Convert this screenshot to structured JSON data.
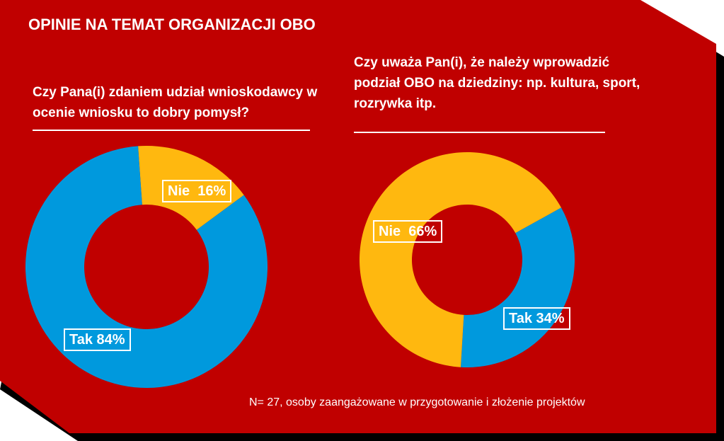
{
  "title": "OPINIE NA TEMAT ORGANIZACJI OBO",
  "colors": {
    "background": "#C00000",
    "tak": "#0099DD",
    "nie": "#FFB80F",
    "text": "#FFFFFF"
  },
  "chart_data": [
    {
      "type": "pie",
      "title": "Czy Pana(i) zdaniem udział wnioskodawcy w ocenie wniosku to dobry pomysł?",
      "categories": [
        "Nie",
        "Tak"
      ],
      "values": [
        16,
        84
      ],
      "labels": [
        "Nie  16%",
        "Tak 84%"
      ],
      "colors": [
        "#FFB80F",
        "#0099DD"
      ]
    },
    {
      "type": "pie",
      "title": "Czy uważa Pan(i), że należy wprowadzić podział OBO na dziedziny: np. kultura, sport, rozrywka itp.",
      "categories": [
        "Tak",
        "Nie"
      ],
      "values": [
        34,
        66
      ],
      "labels": [
        "Tak 34%",
        "Nie  66%"
      ],
      "colors": [
        "#0099DD",
        "#FFB80F"
      ]
    }
  ],
  "note": "N= 27, osoby zaangażowane w przygotowanie i złożenie projektów"
}
